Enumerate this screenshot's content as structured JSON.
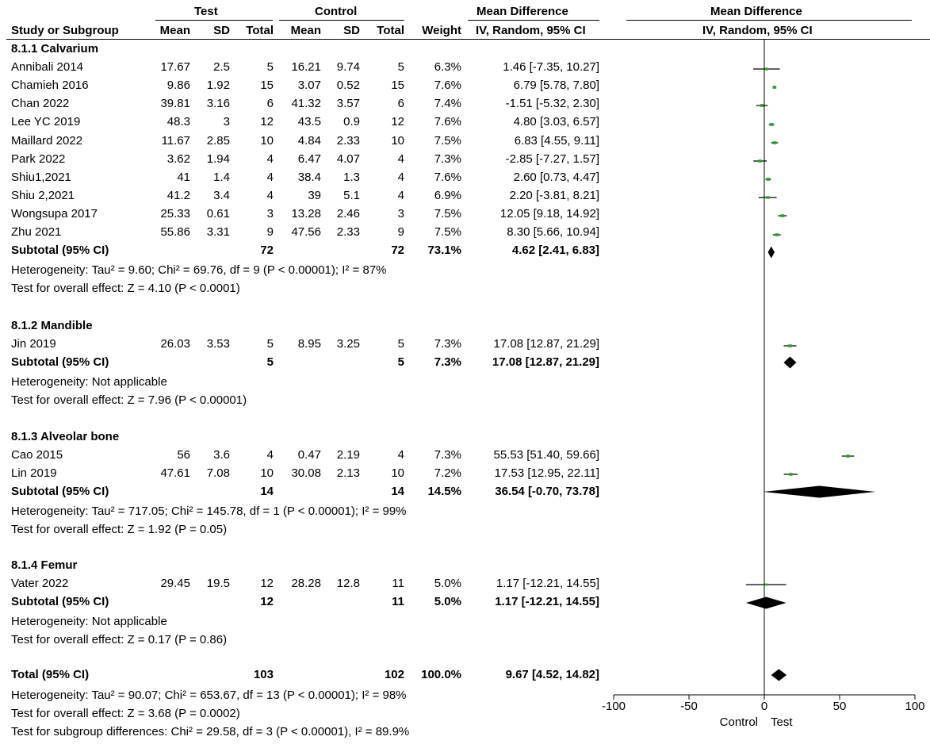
{
  "header": {
    "test": "Test",
    "control": "Control",
    "md_left": "Mean Difference",
    "md_right": "Mean Difference",
    "cols": {
      "study": "Study or Subgroup",
      "t_mean": "Mean",
      "t_sd": "SD",
      "t_total": "Total",
      "c_mean": "Mean",
      "c_sd": "SD",
      "c_total": "Total",
      "weight": "Weight",
      "method_left": "IV, Random, 95% CI",
      "method_right": "IV, Random, 95% CI"
    }
  },
  "subgroups": [
    {
      "title": "8.1.1 Calvarium",
      "studies": [
        {
          "name": "Annibali 2014",
          "tm": "17.67",
          "tsd": "2.5",
          "tn": "5",
          "cm": "16.21",
          "csd": "9.74",
          "cn": "5",
          "w": "6.3%",
          "ci": "1.46 [-7.35, 10.27]"
        },
        {
          "name": "Chamieh 2016",
          "tm": "9.86",
          "tsd": "1.92",
          "tn": "15",
          "cm": "3.07",
          "csd": "0.52",
          "cn": "15",
          "w": "7.6%",
          "ci": "6.79 [5.78, 7.80]"
        },
        {
          "name": "Chan 2022",
          "tm": "39.81",
          "tsd": "3.16",
          "tn": "6",
          "cm": "41.32",
          "csd": "3.57",
          "cn": "6",
          "w": "7.4%",
          "ci": "-1.51 [-5.32, 2.30]"
        },
        {
          "name": "Lee YC 2019",
          "tm": "48.3",
          "tsd": "3",
          "tn": "12",
          "cm": "43.5",
          "csd": "0.9",
          "cn": "12",
          "w": "7.6%",
          "ci": "4.80 [3.03, 6.57]"
        },
        {
          "name": "Maillard 2022",
          "tm": "11.67",
          "tsd": "2.85",
          "tn": "10",
          "cm": "4.84",
          "csd": "2.33",
          "cn": "10",
          "w": "7.5%",
          "ci": "6.83 [4.55, 9.11]"
        },
        {
          "name": "Park 2022",
          "tm": "3.62",
          "tsd": "1.94",
          "tn": "4",
          "cm": "6.47",
          "csd": "4.07",
          "cn": "4",
          "w": "7.3%",
          "ci": "-2.85 [-7.27, 1.57]"
        },
        {
          "name": "Shiu1,2021",
          "tm": "41",
          "tsd": "1.4",
          "tn": "4",
          "cm": "38.4",
          "csd": "1.3",
          "cn": "4",
          "w": "7.6%",
          "ci": "2.60 [0.73, 4.47]"
        },
        {
          "name": "Shiu 2,2021",
          "tm": "41.2",
          "tsd": "3.4",
          "tn": "4",
          "cm": "39",
          "csd": "5.1",
          "cn": "4",
          "w": "6.9%",
          "ci": "2.20 [-3.81, 8.21]"
        },
        {
          "name": "Wongsupa 2017",
          "tm": "25.33",
          "tsd": "0.61",
          "tn": "3",
          "cm": "13.28",
          "csd": "2.46",
          "cn": "3",
          "w": "7.5%",
          "ci": "12.05 [9.18, 14.92]"
        },
        {
          "name": "Zhu 2021",
          "tm": "55.86",
          "tsd": "3.31",
          "tn": "9",
          "cm": "47.56",
          "csd": "2.33",
          "cn": "9",
          "w": "7.5%",
          "ci": "8.30 [5.66, 10.94]"
        }
      ],
      "subtotal": {
        "label": "Subtotal (95% CI)",
        "tn": "72",
        "cn": "72",
        "w": "73.1%",
        "ci": "4.62 [2.41, 6.83]"
      },
      "heterogeneity": "Heterogeneity: Tau² = 9.60; Chi² = 69.76, df = 9 (P < 0.00001); I² = 87%",
      "overall": "Test for overall effect: Z = 4.10 (P < 0.0001)"
    },
    {
      "title": "8.1.2 Mandible",
      "studies": [
        {
          "name": "Jin 2019",
          "tm": "26.03",
          "tsd": "3.53",
          "tn": "5",
          "cm": "8.95",
          "csd": "3.25",
          "cn": "5",
          "w": "7.3%",
          "ci": "17.08 [12.87, 21.29]"
        }
      ],
      "subtotal": {
        "label": "Subtotal (95% CI)",
        "tn": "5",
        "cn": "5",
        "w": "7.3%",
        "ci": "17.08 [12.87, 21.29]"
      },
      "heterogeneity": "Heterogeneity: Not applicable",
      "overall": "Test for overall effect: Z = 7.96 (P < 0.00001)"
    },
    {
      "title": "8.1.3 Alveolar bone",
      "studies": [
        {
          "name": "Cao 2015",
          "tm": "56",
          "tsd": "3.6",
          "tn": "4",
          "cm": "0.47",
          "csd": "2.19",
          "cn": "4",
          "w": "7.3%",
          "ci": "55.53 [51.40, 59.66]"
        },
        {
          "name": "Lin 2019",
          "tm": "47.61",
          "tsd": "7.08",
          "tn": "10",
          "cm": "30.08",
          "csd": "2.13",
          "cn": "10",
          "w": "7.2%",
          "ci": "17.53 [12.95, 22.11]"
        }
      ],
      "subtotal": {
        "label": "Subtotal (95% CI)",
        "tn": "14",
        "cn": "14",
        "w": "14.5%",
        "ci": "36.54 [-0.70, 73.78]"
      },
      "heterogeneity": "Heterogeneity: Tau² = 717.05; Chi² = 145.78, df = 1 (P < 0.00001); I² = 99%",
      "overall": "Test for overall effect: Z = 1.92 (P = 0.05)"
    },
    {
      "title": "8.1.4 Femur",
      "studies": [
        {
          "name": "Vater 2022",
          "tm": "29.45",
          "tsd": "19.5",
          "tn": "12",
          "cm": "28.28",
          "csd": "12.8",
          "cn": "11",
          "w": "5.0%",
          "ci": "1.17 [-12.21, 14.55]"
        }
      ],
      "subtotal": {
        "label": "Subtotal (95% CI)",
        "tn": "12",
        "cn": "11",
        "w": "5.0%",
        "ci": "1.17 [-12.21, 14.55]"
      },
      "heterogeneity": "Heterogeneity: Not applicable",
      "overall": "Test for overall effect: Z = 0.17 (P = 0.86)"
    }
  ],
  "total": {
    "label": "Total (95% CI)",
    "tn": "103",
    "cn": "102",
    "w": "100.0%",
    "ci": "9.67 [4.52, 14.82]",
    "heterogeneity": "Heterogeneity: Tau² = 90.07; Chi² = 653.67, df = 13 (P < 0.00001); I² = 98%",
    "overall": "Test for overall effect: Z = 3.68 (P = 0.0002)",
    "subgroup_diff": "Test for subgroup differences: Chi² = 29.58, df = 3 (P < 0.00001), I² = 89.9%"
  },
  "chart_data": {
    "type": "forest",
    "xlim": [
      -100,
      100
    ],
    "ticks": [
      -100,
      -50,
      0,
      50,
      100
    ],
    "tick_labels": [
      "-100",
      "-50",
      "0",
      "50",
      "100"
    ],
    "xlabel_left": "Control",
    "xlabel_right": "Test",
    "study_color": "#2ca02c",
    "studies": [
      {
        "name": "Annibali 2014",
        "md": 1.46,
        "lo": -7.35,
        "hi": 10.27,
        "weight": 6.3
      },
      {
        "name": "Chamieh 2016",
        "md": 6.79,
        "lo": 5.78,
        "hi": 7.8,
        "weight": 7.6
      },
      {
        "name": "Chan 2022",
        "md": -1.51,
        "lo": -5.32,
        "hi": 2.3,
        "weight": 7.4
      },
      {
        "name": "Lee YC 2019",
        "md": 4.8,
        "lo": 3.03,
        "hi": 6.57,
        "weight": 7.6
      },
      {
        "name": "Maillard 2022",
        "md": 6.83,
        "lo": 4.55,
        "hi": 9.11,
        "weight": 7.5
      },
      {
        "name": "Park 2022",
        "md": -2.85,
        "lo": -7.27,
        "hi": 1.57,
        "weight": 7.3
      },
      {
        "name": "Shiu1,2021",
        "md": 2.6,
        "lo": 0.73,
        "hi": 4.47,
        "weight": 7.6
      },
      {
        "name": "Shiu 2,2021",
        "md": 2.2,
        "lo": -3.81,
        "hi": 8.21,
        "weight": 6.9
      },
      {
        "name": "Wongsupa 2017",
        "md": 12.05,
        "lo": 9.18,
        "hi": 14.92,
        "weight": 7.5
      },
      {
        "name": "Zhu 2021",
        "md": 8.3,
        "lo": 5.66,
        "hi": 10.94,
        "weight": 7.5
      },
      {
        "name": "Jin 2019",
        "md": 17.08,
        "lo": 12.87,
        "hi": 21.29,
        "weight": 7.3
      },
      {
        "name": "Cao 2015",
        "md": 55.53,
        "lo": 51.4,
        "hi": 59.66,
        "weight": 7.3
      },
      {
        "name": "Lin 2019",
        "md": 17.53,
        "lo": 12.95,
        "hi": 22.11,
        "weight": 7.2
      },
      {
        "name": "Vater 2022",
        "md": 1.17,
        "lo": -12.21,
        "hi": 14.55,
        "weight": 5.0
      }
    ],
    "diamonds": [
      {
        "name": "Subtotal 8.1.1",
        "md": 4.62,
        "lo": 2.41,
        "hi": 6.83
      },
      {
        "name": "Subtotal 8.1.2",
        "md": 17.08,
        "lo": 12.87,
        "hi": 21.29
      },
      {
        "name": "Subtotal 8.1.3",
        "md": 36.54,
        "lo": -0.7,
        "hi": 73.78
      },
      {
        "name": "Subtotal 8.1.4",
        "md": 1.17,
        "lo": -12.21,
        "hi": 14.55
      },
      {
        "name": "Total",
        "md": 9.67,
        "lo": 4.52,
        "hi": 14.82
      }
    ]
  }
}
